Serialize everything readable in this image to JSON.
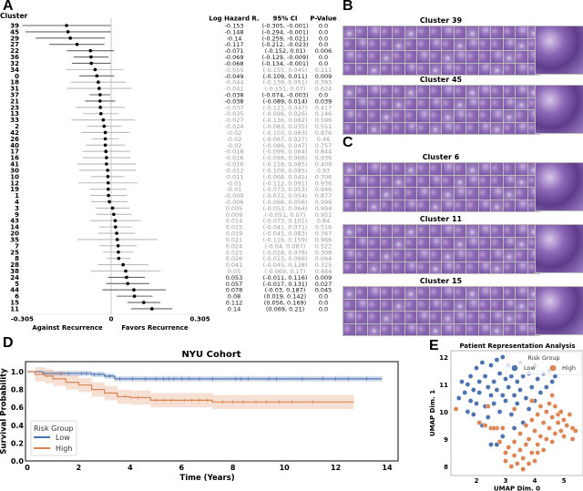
{
  "panels": {
    "a": "A",
    "b": "B",
    "c": "C",
    "d": "D",
    "e": "E"
  },
  "forest": {
    "cluster_header": "Cluster",
    "col_headers": [
      "Log Hazard R.",
      "95% CI",
      "P-Value"
    ],
    "axis_ticks": [
      "-0.305",
      "0",
      "0.305"
    ],
    "axis_range": [
      -0.305,
      0.305
    ],
    "left_label": "Against Recurrence",
    "right_label": "Favors Recurrence",
    "rows": [
      [
        "39",
        "-0.153",
        "(-0.305, -0.001)",
        "0.0"
      ],
      [
        "45",
        "-0.148",
        "(-0.294, -0.001)",
        "0.0"
      ],
      [
        "29",
        "-0.14",
        "(-0.259, -0.021)",
        "0.0"
      ],
      [
        "27",
        "-0.117",
        "(-0.212, -0.023)",
        "0.0"
      ],
      [
        "22",
        "-0.071",
        "(-0.152, 0.01)",
        "0.006"
      ],
      [
        "36",
        "-0.069",
        "(-0.129, -0.009)",
        "0.0"
      ],
      [
        "32",
        "-0.068",
        "(-0.134, -0.001)",
        "0.0"
      ],
      [
        "34",
        "-0.055",
        "(-0.155, 0.045)",
        "0.211"
      ],
      [
        "0",
        "-0.049",
        "(-0.109, 0.011)",
        "0.009"
      ],
      [
        "18",
        "-0.044",
        "(-0.139, 0.051)",
        "0.393"
      ],
      [
        "31",
        "-0.041",
        "(-0.151, 0.07)",
        "0.624"
      ],
      [
        "37",
        "-0.038",
        "(-0.074, -0.003)",
        "0.0"
      ],
      [
        "21",
        "-0.038",
        "(-0.089, 0.014)",
        "0.039"
      ],
      [
        "23",
        "-0.037",
        "(-0.121, 0.047)",
        "0.417"
      ],
      [
        "13",
        "-0.035",
        "(-0.096, 0.026)",
        "0.146"
      ],
      [
        "33",
        "-0.027",
        "(-0.136, 0.082)",
        "0.596"
      ],
      [
        "2",
        "-0.024",
        "(-0.083, 0.035)",
        "0.551"
      ],
      [
        "42",
        "-0.02",
        "(-0.103, 0.063)",
        "0.876"
      ],
      [
        "26",
        "-0.02",
        "(-0.067, 0.027)",
        "0.46"
      ],
      [
        "40",
        "-0.02",
        "(-0.086, 0.047)",
        "0.757"
      ],
      [
        "17",
        "-0.018",
        "(-0.099, 0.064)",
        "0.844"
      ],
      [
        "16",
        "-0.016",
        "(-0.098, 0.066)",
        "0.936"
      ],
      [
        "41",
        "-0.016",
        "(-0.116, 0.085)",
        "0.409"
      ],
      [
        "30",
        "-0.012",
        "(-0.109, 0.085)",
        "0.93"
      ],
      [
        "10",
        "-0.011",
        "(-0.068, 0.045)",
        "0.706"
      ],
      [
        "12",
        "-0.01",
        "(-0.112, 0.091)",
        "0.936"
      ],
      [
        "19",
        "-0.01",
        "(-0.073, 0.053)",
        "0.946"
      ],
      [
        "1",
        "-0.009",
        "(-0.072, 0.054)",
        "0.877"
      ],
      [
        "4",
        "-0.006",
        "(-0.068, 0.056)",
        "0.996"
      ],
      [
        "3",
        "0.005",
        "(-0.053, 0.064)",
        "0.994"
      ],
      [
        "9",
        "0.009",
        "(-0.051, 0.07)",
        "0.951"
      ],
      [
        "43",
        "0.014",
        "(-0.073, 0.101)",
        "0.84"
      ],
      [
        "14",
        "0.015",
        "(-0.041, 0.071)",
        "0.516"
      ],
      [
        "20",
        "0.019",
        "(-0.045, 0.083)",
        "0.767"
      ],
      [
        "35",
        "0.021",
        "(-0.116, 0.159)",
        "0.966"
      ],
      [
        "7",
        "0.024",
        "(-0.04, 0.087)",
        "0.522"
      ],
      [
        "25",
        "0.025",
        "(-0.028, 0.079)",
        "0.308"
      ],
      [
        "8",
        "0.026",
        "(-0.013, 0.066)",
        "0.064"
      ],
      [
        "28",
        "0.041",
        "(-0.045, 0.128)",
        "0.325"
      ],
      [
        "38",
        "0.05",
        "(-0.069, 0.17)",
        "0.484"
      ],
      [
        "24",
        "0.053",
        "(-0.011, 0.116)",
        "0.009"
      ],
      [
        "5",
        "0.057",
        "(-0.017, 0.131)",
        "0.027"
      ],
      [
        "44",
        "0.078",
        "(-0.03, 0.187)",
        "0.045"
      ],
      [
        "6",
        "0.08",
        "(0.019, 0.142)",
        "0.0"
      ],
      [
        "15",
        "0.112",
        "(0.056, 0.169)",
        "0.0"
      ],
      [
        "11",
        "0.14",
        "(0.069, 0.21)",
        "0.0"
      ]
    ]
  },
  "tiles": {
    "b": [
      {
        "title": "Cluster 39"
      },
      {
        "title": "Cluster 45"
      }
    ],
    "c": [
      {
        "title": "Cluster 6"
      },
      {
        "title": "Cluster 11"
      },
      {
        "title": "Cluster 15"
      }
    ]
  },
  "colors": {
    "low": "#4c72b0",
    "high": "#dd8452",
    "significant": "#111111",
    "nonsignificant": "#999999"
  },
  "chart_data": [
    {
      "type": "line",
      "title": "NYU Cohort",
      "xlabel": "Time (Years)",
      "ylabel": "Survival Probability",
      "xlim": [
        0,
        14.5
      ],
      "ylim": [
        0,
        1.1
      ],
      "xticks": [
        "0",
        "2",
        "4",
        "6",
        "8",
        "10",
        "12",
        "14"
      ],
      "yticks": [
        "0.0",
        "0.2",
        "0.4",
        "0.6",
        "0.8",
        "1.0"
      ],
      "legend": {
        "title": "Risk Group",
        "position": "lower-left"
      },
      "series": [
        {
          "name": "Low",
          "steps": [
            [
              0,
              1.0
            ],
            [
              0.6,
              0.98
            ],
            [
              2.5,
              0.97
            ],
            [
              3.0,
              0.95
            ],
            [
              3.4,
              0.92
            ],
            [
              13.8,
              0.92
            ]
          ],
          "ci_halfwidth": 0.03,
          "censor": [
            1.3,
            1.6,
            2.1,
            2.3,
            2.6,
            2.8,
            3.2,
            3.6,
            4.1,
            4.6,
            5.0,
            5.3,
            5.5,
            5.7,
            6.0,
            6.3,
            6.7,
            7.2,
            8.1,
            8.3,
            8.6,
            9.4,
            9.7,
            10.7,
            11.5,
            12.0,
            12.5,
            13.2
          ]
        },
        {
          "name": "High",
          "steps": [
            [
              0,
              1.0
            ],
            [
              0.3,
              0.97
            ],
            [
              0.7,
              0.95
            ],
            [
              1.0,
              0.92
            ],
            [
              1.5,
              0.88
            ],
            [
              2.0,
              0.85
            ],
            [
              2.5,
              0.8
            ],
            [
              3.0,
              0.76
            ],
            [
              3.5,
              0.72
            ],
            [
              4.0,
              0.71
            ],
            [
              4.8,
              0.68
            ],
            [
              7.2,
              0.66
            ],
            [
              12.7,
              0.66
            ]
          ],
          "ci_halfwidth": 0.08,
          "censor": [
            3.8,
            4.3,
            5.0,
            5.3,
            5.6,
            6.1,
            6.4,
            6.7,
            7.0,
            7.6,
            8.0,
            8.4,
            8.9,
            9.3,
            9.8,
            10.3,
            11.1
          ]
        }
      ]
    },
    {
      "type": "scatter",
      "title": "Patient Representation Analysis",
      "xlabel": "UMAP Dim. 0",
      "ylabel": "UMAP Dim. 1",
      "xlim": [
        1.1,
        5.6
      ],
      "ylim": [
        7.7,
        12.2
      ],
      "xticks": [
        "2",
        "3",
        "4",
        "5"
      ],
      "yticks": [
        "8",
        "9",
        "10",
        "11",
        "12"
      ],
      "legend": {
        "title": "Risk Group",
        "position": "top-right"
      },
      "series": [
        {
          "name": "Low",
          "points": [
            [
              1.4,
              10.5
            ],
            [
              1.5,
              11.1
            ],
            [
              1.6,
              10.7
            ],
            [
              1.7,
              10.0
            ],
            [
              1.7,
              11.0
            ],
            [
              1.8,
              10.4
            ],
            [
              1.8,
              11.3
            ],
            [
              1.9,
              10.8
            ],
            [
              1.9,
              9.9
            ],
            [
              2.0,
              11.6
            ],
            [
              2.0,
              10.3
            ],
            [
              2.1,
              11.1
            ],
            [
              2.1,
              10.7
            ],
            [
              2.2,
              9.5
            ],
            [
              2.2,
              11.8
            ],
            [
              2.3,
              10.2
            ],
            [
              2.3,
              11.3
            ],
            [
              2.4,
              10.9
            ],
            [
              2.4,
              9.8
            ],
            [
              2.5,
              11.7
            ],
            [
              2.5,
              10.6
            ],
            [
              2.6,
              11.1
            ],
            [
              2.6,
              10.3
            ],
            [
              2.7,
              11.9
            ],
            [
              2.7,
              10.8
            ],
            [
              2.8,
              11.4
            ],
            [
              2.8,
              10.0
            ],
            [
              2.9,
              12.0
            ],
            [
              2.9,
              10.6
            ],
            [
              3.0,
              11.2
            ],
            [
              3.0,
              10.4
            ],
            [
              3.1,
              11.7
            ],
            [
              3.1,
              10.9
            ],
            [
              3.2,
              11.3
            ],
            [
              3.2,
              9.9
            ],
            [
              3.3,
              10.6
            ],
            [
              3.3,
              11.6
            ],
            [
              3.4,
              11.1
            ],
            [
              3.4,
              10.3
            ],
            [
              3.5,
              11.8
            ],
            [
              3.5,
              10.8
            ],
            [
              3.6,
              11.3
            ],
            [
              3.6,
              9.6
            ],
            [
              3.7,
              10.5
            ],
            [
              3.8,
              11.4
            ],
            [
              3.8,
              10.1
            ],
            [
              3.9,
              10.9
            ],
            [
              4.0,
              11.7
            ],
            [
              4.0,
              10.4
            ],
            [
              4.1,
              11.2
            ],
            [
              4.2,
              10.7
            ],
            [
              4.3,
              11.4
            ],
            [
              4.4,
              10.9
            ],
            [
              4.5,
              11.5
            ],
            [
              4.6,
              11.1
            ],
            [
              4.7,
              11.3
            ],
            [
              2.5,
              8.8
            ],
            [
              2.9,
              9.1
            ],
            [
              3.3,
              9.4
            ],
            [
              2.7,
              8.8
            ]
          ]
        },
        {
          "name": "High",
          "points": [
            [
              1.3,
              10.1
            ],
            [
              2.1,
              9.6
            ],
            [
              2.3,
              9.5
            ],
            [
              2.5,
              9.4
            ],
            [
              2.7,
              9.4
            ],
            [
              2.9,
              9.4
            ],
            [
              2.8,
              8.9
            ],
            [
              3.0,
              8.5
            ],
            [
              3.0,
              8.2
            ],
            [
              3.1,
              8.7
            ],
            [
              3.2,
              8.0
            ],
            [
              3.3,
              8.4
            ],
            [
              3.3,
              8.9
            ],
            [
              3.4,
              8.1
            ],
            [
              3.5,
              8.6
            ],
            [
              3.5,
              9.2
            ],
            [
              3.6,
              7.9
            ],
            [
              3.6,
              8.3
            ],
            [
              3.7,
              8.8
            ],
            [
              3.7,
              9.5
            ],
            [
              3.8,
              8.1
            ],
            [
              3.8,
              9.0
            ],
            [
              3.9,
              8.5
            ],
            [
              3.9,
              9.7
            ],
            [
              4.0,
              8.2
            ],
            [
              4.0,
              9.3
            ],
            [
              4.1,
              8.8
            ],
            [
              4.1,
              9.9
            ],
            [
              4.2,
              9.1
            ],
            [
              4.2,
              10.2
            ],
            [
              4.3,
              8.6
            ],
            [
              4.3,
              9.6
            ],
            [
              4.4,
              9.0
            ],
            [
              4.4,
              10.0
            ],
            [
              4.5,
              9.4
            ],
            [
              4.5,
              10.3
            ],
            [
              4.6,
              8.9
            ],
            [
              4.6,
              9.8
            ],
            [
              4.7,
              9.2
            ],
            [
              4.7,
              10.2
            ],
            [
              4.8,
              9.6
            ],
            [
              4.8,
              9.9
            ],
            [
              4.9,
              9.3
            ],
            [
              4.9,
              10.0
            ],
            [
              5.0,
              9.7
            ],
            [
              5.0,
              9.1
            ],
            [
              5.1,
              9.5
            ],
            [
              5.2,
              9.9
            ],
            [
              5.3,
              9.4
            ],
            [
              5.4,
              9.3
            ],
            [
              5.3,
              9.0
            ],
            [
              3.3,
              10.1
            ],
            [
              3.9,
              10.4
            ],
            [
              4.6,
              10.6
            ],
            [
              2.4,
              10.2
            ],
            [
              4.7,
              11.6
            ],
            [
              4.1,
              8.5
            ],
            [
              2.6,
              9.4
            ]
          ]
        }
      ]
    }
  ]
}
